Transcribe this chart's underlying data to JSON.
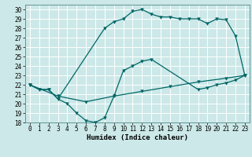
{
  "xlabel": "Humidex (Indice chaleur)",
  "bg_color": "#cce8e8",
  "grid_color": "#ffffff",
  "line_color": "#006666",
  "line1_x": [
    0,
    1,
    2,
    3,
    8,
    9,
    10,
    11,
    12,
    13,
    14,
    15,
    16,
    17,
    18,
    19,
    20,
    21,
    22,
    23
  ],
  "line1_y": [
    22,
    21.5,
    21.5,
    20.5,
    28,
    28.7,
    29.0,
    29.8,
    30.0,
    29.5,
    29.2,
    29.2,
    29.0,
    29.0,
    29.0,
    28.5,
    29.0,
    28.9,
    27.2,
    23.0
  ],
  "line2_x": [
    0,
    1,
    2,
    3,
    4,
    5,
    6,
    7,
    8,
    9,
    10,
    11,
    12,
    13,
    18,
    19,
    20,
    21,
    22,
    23
  ],
  "line2_y": [
    22,
    21.5,
    21.5,
    20.5,
    20.0,
    19.0,
    18.2,
    18.0,
    18.5,
    20.8,
    23.5,
    24.0,
    24.5,
    24.7,
    21.5,
    21.7,
    22.0,
    22.2,
    22.5,
    23.0
  ],
  "line3_x": [
    0,
    3,
    6,
    9,
    12,
    15,
    18,
    21,
    23
  ],
  "line3_y": [
    22,
    20.8,
    20.2,
    20.8,
    21.3,
    21.8,
    22.3,
    22.7,
    23.0
  ],
  "xlim": [
    -0.5,
    23.5
  ],
  "ylim": [
    18,
    30.5
  ],
  "xticks": [
    0,
    1,
    2,
    3,
    4,
    5,
    6,
    7,
    8,
    9,
    10,
    11,
    12,
    13,
    14,
    15,
    16,
    17,
    18,
    19,
    20,
    21,
    22,
    23
  ],
  "yticks": [
    18,
    19,
    20,
    21,
    22,
    23,
    24,
    25,
    26,
    27,
    28,
    29,
    30
  ],
  "tick_fontsize": 5.5,
  "xlabel_fontsize": 6.5
}
